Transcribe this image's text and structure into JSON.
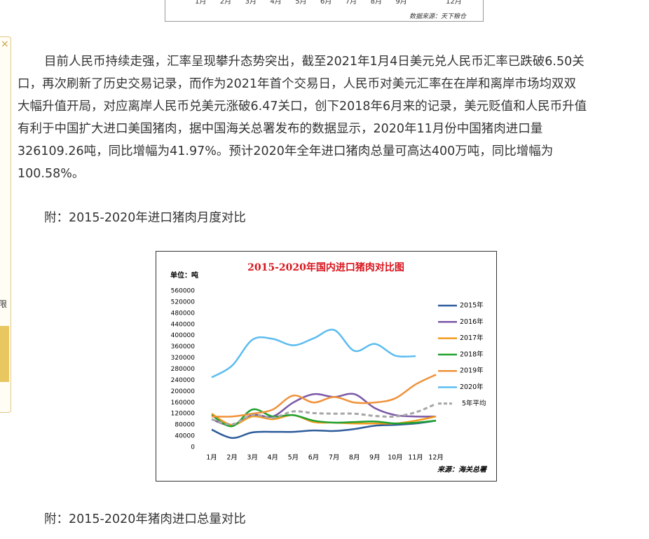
{
  "top_fragment": {
    "month_labels": [
      "1月",
      "2月",
      "3月",
      "4月",
      "5月",
      "6月",
      "7月",
      "8月",
      "9月",
      "12月"
    ],
    "source": "数据来源：天下粮仓"
  },
  "sidebar": {
    "close": "×",
    "label": "限"
  },
  "article": {
    "paragraph_lines": [
      "目前人民币持续走强，汇率呈现攀升态势突出，截至2021年1月4日美元兑人民币汇率已跌破6.50关",
      "口，再次刷新了历史交易记录，而作为2021年首个交易日，人民币对美元汇率在在岸和离岸市场均双双",
      "大幅升值开局，对应离岸人民币兑美元涨破6.47关口，创下2018年6月来的记录，美元贬值和人民币升值",
      "有利于中国扩大进口美国猪肉，据中国海关总署发布的数据显示，2020年11月份中国猪肉进口量",
      "326109.26吨，同比增幅为41.97%。预计2020年全年进口猪肉总量可高达400万吨，同比增幅为",
      "100.58%。"
    ],
    "caption_1": "附：2015-2020年进口猪肉月度对比",
    "caption_2": "附：2015-2020年猪肉进口总量对比"
  },
  "chart_data": {
    "type": "line",
    "title": "2015-2020年国内进口猪肉对比图",
    "y_unit": "单位：吨",
    "source": "来源：海关总署",
    "categories": [
      "1月",
      "2月",
      "3月",
      "4月",
      "5月",
      "6月",
      "7月",
      "8月",
      "9月",
      "10月",
      "11月",
      "12月"
    ],
    "ylim": [
      0,
      560000
    ],
    "yticks": [
      0,
      40000,
      80000,
      120000,
      160000,
      200000,
      240000,
      280000,
      320000,
      360000,
      400000,
      440000,
      480000,
      520000,
      560000
    ],
    "series": [
      {
        "name": "2015年",
        "color": "#2e5c9a",
        "values": [
          63000,
          33000,
          53000,
          55000,
          55000,
          60000,
          58000,
          65000,
          77000,
          80000,
          85000,
          95000
        ]
      },
      {
        "name": "2016年",
        "color": "#7b58a6",
        "values": [
          100000,
          78000,
          115000,
          110000,
          160000,
          190000,
          180000,
          190000,
          140000,
          115000,
          110000,
          110000
        ]
      },
      {
        "name": "2017年",
        "color": "#f59a1d",
        "values": [
          120000,
          80000,
          110000,
          100000,
          115000,
          90000,
          88000,
          85000,
          85000,
          85000,
          95000,
          110000
        ]
      },
      {
        "name": "2018年",
        "color": "#1fa12f",
        "values": [
          115000,
          75000,
          135000,
          110000,
          115000,
          95000,
          88000,
          90000,
          92000,
          85000,
          88000,
          95000
        ]
      },
      {
        "name": "2019年",
        "color": "#f0923a",
        "values": [
          110000,
          110000,
          120000,
          135000,
          185000,
          160000,
          180000,
          160000,
          160000,
          175000,
          225000,
          260000
        ]
      },
      {
        "name": "2020年",
        "color": "#5bbcf0",
        "values": [
          250000,
          292000,
          385000,
          388000,
          365000,
          390000,
          420000,
          345000,
          370000,
          328000,
          326000,
          null
        ]
      },
      {
        "name": "5年平均",
        "color": "#a6a6a6",
        "dashed": true,
        "values": [
          100000,
          82000,
          115000,
          105000,
          128000,
          122000,
          120000,
          120000,
          112000,
          110000,
          125000,
          155000
        ]
      }
    ]
  }
}
